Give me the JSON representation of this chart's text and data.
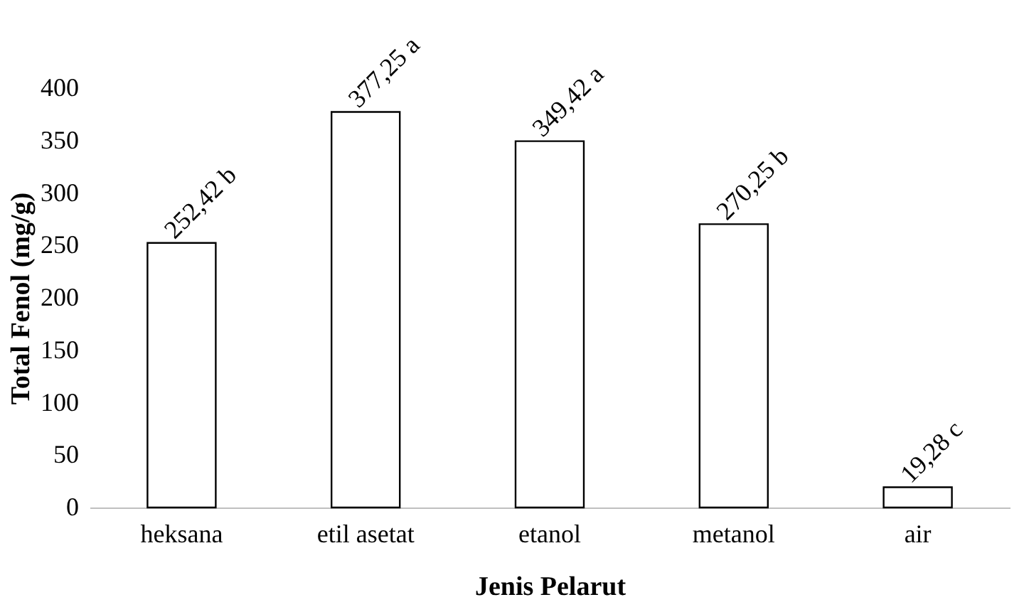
{
  "chart_data": {
    "type": "bar",
    "xlabel": "Jenis Pelarut",
    "ylabel": "Total Fenol (mg/g)",
    "categories": [
      "heksana",
      "etil asetat",
      "etanol",
      "metanol",
      "air"
    ],
    "values": [
      252.42,
      377.25,
      349.42,
      270.25,
      19.28
    ],
    "value_labels": [
      "252,42 b",
      "377,25 a",
      "349,42 a",
      "270,25 b",
      "19,28 c"
    ],
    "color": "#ffffff",
    "ylim": [
      0,
      400
    ],
    "yticks": [
      0,
      50,
      100,
      150,
      200,
      250,
      300,
      350,
      400
    ],
    "grid": false
  }
}
